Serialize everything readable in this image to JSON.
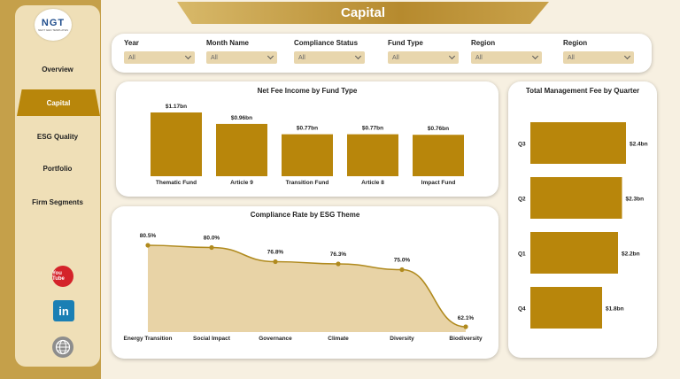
{
  "logo": {
    "mark": "NGT",
    "sub": "NEXT GEN TEMPLATES"
  },
  "title": "Capital",
  "sidebar": {
    "items": [
      {
        "label": "Overview",
        "active": false
      },
      {
        "label": "Capital",
        "active": true
      },
      {
        "label": "ESG Quality",
        "active": false
      },
      {
        "label": "Portfolio",
        "active": false
      },
      {
        "label": "Firm Segments",
        "active": false
      }
    ],
    "social": {
      "youtube_icon": "youtube-icon",
      "youtube_text": "You Tube",
      "linkedin_icon": "linkedin-icon",
      "linkedin_text": "in",
      "globe_icon": "globe-icon"
    }
  },
  "filters": [
    {
      "label": "Year",
      "value": "All"
    },
    {
      "label": "Month Name",
      "value": "All"
    },
    {
      "label": "Compliance Status",
      "value": "All"
    },
    {
      "label": "Fund Type",
      "value": "All"
    },
    {
      "label": "Region",
      "value": "All"
    },
    {
      "label": "Region",
      "value": "All"
    }
  ],
  "colors": {
    "accent": "#b8860b",
    "area_fill": "#e8d3a6",
    "line": "#b08a1e",
    "sidebar_bg": "#efdfb7",
    "page_bg": "#f7f0e1"
  },
  "chart_data": [
    {
      "type": "bar",
      "title": "Net Fee Income by Fund Type",
      "categories": [
        "Thematic Fund",
        "Article 9",
        "Transition Fund",
        "Article 8",
        "Impact Fund"
      ],
      "values": [
        1.17,
        0.96,
        0.77,
        0.77,
        0.76
      ],
      "data_labels": [
        "$1.17bn",
        "$0.96bn",
        "$0.77bn",
        "$0.77bn",
        "$0.76bn"
      ],
      "unit": "bn"
    },
    {
      "type": "bar",
      "orientation": "horizontal",
      "title": "Total Management Fee by Quarter",
      "categories": [
        "Q3",
        "Q2",
        "Q1",
        "Q4"
      ],
      "values": [
        2.4,
        2.3,
        2.2,
        1.8
      ],
      "data_labels": [
        "$2.4bn",
        "$2.3bn",
        "$2.2bn",
        "$1.8bn"
      ],
      "unit": "bn"
    },
    {
      "type": "area",
      "title": "Compliance Rate by ESG Theme",
      "categories": [
        "Energy Transition",
        "Social Impact",
        "Governance",
        "Climate",
        "Diversity",
        "Biodiversity"
      ],
      "values": [
        80.5,
        80.0,
        76.8,
        76.3,
        75.0,
        62.1
      ],
      "data_labels": [
        "80.5%",
        "80.0%",
        "76.8%",
        "76.3%",
        "75.0%",
        "62.1%"
      ]
    }
  ]
}
